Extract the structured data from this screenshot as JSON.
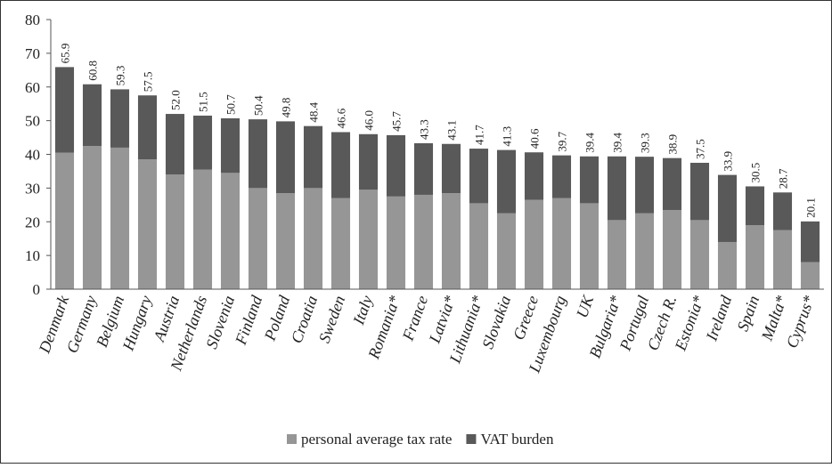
{
  "chart_data": {
    "type": "stacked-bar",
    "categories": [
      "Denmark",
      "Germany",
      "Belgium",
      "Hungary",
      "Austria",
      "Netherlands",
      "Slovenia",
      "Finland",
      "Poland",
      "Croatia",
      "Sweden",
      "Italy",
      "Romania*",
      "France",
      "Latvia*",
      "Lithuania*",
      "Slovakia",
      "Greece",
      "Luxembourg",
      "UK",
      "Bulgaria*",
      "Portugal",
      "Czech R.",
      "Estonia*",
      "Ireland",
      "Spain",
      "Malta*",
      "Cyprus*"
    ],
    "series": [
      {
        "name": "personal average tax rate",
        "color": "#969696",
        "values": [
          40.5,
          42.5,
          42,
          38.5,
          34,
          35.5,
          34.5,
          30,
          28.5,
          30,
          27,
          29.5,
          27.5,
          28,
          28.5,
          25.5,
          22.5,
          26.5,
          27,
          25.5,
          20.5,
          22.5,
          23.5,
          20.5,
          14,
          19,
          17.5,
          8
        ]
      },
      {
        "name": "VAT burden",
        "color": "#595959",
        "values": [
          25.4,
          18.3,
          17.3,
          19,
          18,
          16,
          16.2,
          20.4,
          21.3,
          18.4,
          19.6,
          16.5,
          18.2,
          15.3,
          14.6,
          16.2,
          18.8,
          14.1,
          12.7,
          13.9,
          18.9,
          16.8,
          15.4,
          17,
          19.9,
          11.5,
          11.2,
          12.1
        ]
      }
    ],
    "totals": [
      65.9,
      60.8,
      59.3,
      57.5,
      52.0,
      51.5,
      50.7,
      50.4,
      49.8,
      48.4,
      46.6,
      46.0,
      45.7,
      43.3,
      43.1,
      41.7,
      41.3,
      40.6,
      39.7,
      39.4,
      39.4,
      39.3,
      38.9,
      37.5,
      33.9,
      30.5,
      28.7,
      20.1
    ],
    "total_labels": [
      "65.9",
      "60.8",
      "59.3",
      "57.5",
      "52.0",
      "51.5",
      "50.7",
      "50.4",
      "49.8",
      "48.4",
      "46.6",
      "46.0",
      "45.7",
      "43.3",
      "43.1",
      "41.7",
      "41.3",
      "40.6",
      "39.7",
      "39.4",
      "39.4",
      "39.3",
      "38.9",
      "37.5",
      "33.9",
      "30.5",
      "28.7",
      "20.1"
    ],
    "ylim": [
      0,
      80
    ],
    "yticks": [
      0,
      10,
      20,
      30,
      40,
      50,
      60,
      70,
      80
    ],
    "grid": false,
    "legend": "bottom"
  }
}
